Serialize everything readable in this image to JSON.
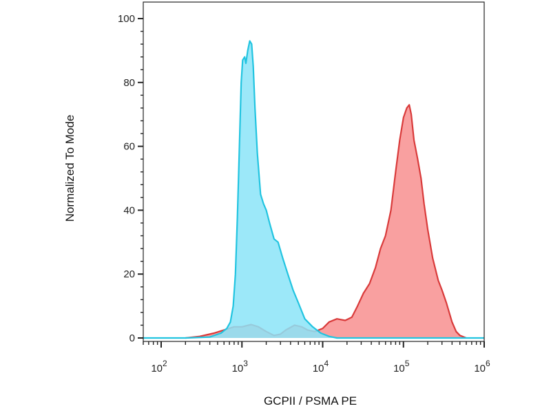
{
  "chart_data": {
    "type": "area",
    "title": "",
    "xlabel": "GCPII / PSMA PE",
    "ylabel": "Normalized To Mode",
    "x_scale": "log",
    "xlim": [
      60,
      1000000
    ],
    "ylim": [
      0,
      100
    ],
    "x_ticks": [
      {
        "value": 100,
        "base": "10",
        "exp": "2"
      },
      {
        "value": 1000,
        "base": "10",
        "exp": "3"
      },
      {
        "value": 10000,
        "base": "10",
        "exp": "4"
      },
      {
        "value": 100000,
        "base": "10",
        "exp": "5"
      },
      {
        "value": 1000000,
        "base": "10",
        "exp": "6"
      }
    ],
    "y_ticks": [
      {
        "value": 0,
        "label": "0"
      },
      {
        "value": 20,
        "label": "20"
      },
      {
        "value": 40,
        "label": "40"
      },
      {
        "value": 60,
        "label": "60"
      },
      {
        "value": 80,
        "label": "80"
      },
      {
        "value": 100,
        "label": "100"
      }
    ],
    "grid": false,
    "series": [
      {
        "line_color": "#d93a3a",
        "fill_color": "#f9a0a0",
        "points": [
          [
            200,
            0
          ],
          [
            300,
            0.5
          ],
          [
            450,
            1.5
          ],
          [
            600,
            2.5
          ],
          [
            800,
            3.5
          ],
          [
            1000,
            3.5
          ],
          [
            1300,
            4.2
          ],
          [
            1600,
            3.5
          ],
          [
            2000,
            2
          ],
          [
            2500,
            0.8
          ],
          [
            3000,
            1.2
          ],
          [
            3500,
            2.5
          ],
          [
            4500,
            4
          ],
          [
            5500,
            3.5
          ],
          [
            6500,
            2.5
          ],
          [
            8000,
            2
          ],
          [
            10000,
            3
          ],
          [
            12000,
            5
          ],
          [
            15000,
            6
          ],
          [
            19000,
            5.5
          ],
          [
            23000,
            6.5
          ],
          [
            27000,
            10
          ],
          [
            32000,
            14
          ],
          [
            38000,
            17
          ],
          [
            45000,
            22
          ],
          [
            52000,
            28
          ],
          [
            60000,
            32
          ],
          [
            70000,
            40
          ],
          [
            80000,
            52
          ],
          [
            90000,
            62
          ],
          [
            100000,
            69
          ],
          [
            110000,
            72
          ],
          [
            118000,
            73
          ],
          [
            125000,
            70
          ],
          [
            135000,
            62
          ],
          [
            150000,
            56
          ],
          [
            165000,
            50
          ],
          [
            180000,
            42
          ],
          [
            200000,
            34
          ],
          [
            230000,
            25
          ],
          [
            270000,
            18
          ],
          [
            300000,
            15
          ],
          [
            340000,
            11
          ],
          [
            400000,
            5
          ],
          [
            450000,
            2
          ],
          [
            500000,
            0.8
          ],
          [
            600000,
            0
          ]
        ]
      },
      {
        "line_color": "#21c4e0",
        "fill_color": "#8be4f8",
        "points": [
          [
            60,
            0
          ],
          [
            200,
            0
          ],
          [
            400,
            0.3
          ],
          [
            550,
            1.5
          ],
          [
            650,
            3
          ],
          [
            720,
            5
          ],
          [
            780,
            10
          ],
          [
            830,
            20
          ],
          [
            880,
            38
          ],
          [
            930,
            60
          ],
          [
            980,
            80
          ],
          [
            1020,
            87
          ],
          [
            1080,
            88
          ],
          [
            1120,
            86
          ],
          [
            1180,
            90
          ],
          [
            1250,
            93
          ],
          [
            1320,
            92
          ],
          [
            1380,
            85
          ],
          [
            1450,
            72
          ],
          [
            1550,
            58
          ],
          [
            1700,
            45
          ],
          [
            1850,
            42
          ],
          [
            2000,
            40
          ],
          [
            2200,
            36
          ],
          [
            2500,
            31
          ],
          [
            2800,
            30
          ],
          [
            3200,
            25
          ],
          [
            3700,
            20
          ],
          [
            4300,
            15
          ],
          [
            5000,
            11
          ],
          [
            6000,
            6
          ],
          [
            7500,
            3.5
          ],
          [
            9500,
            1.5
          ],
          [
            12000,
            0.5
          ],
          [
            15000,
            0
          ],
          [
            1000000,
            0
          ]
        ]
      }
    ]
  }
}
